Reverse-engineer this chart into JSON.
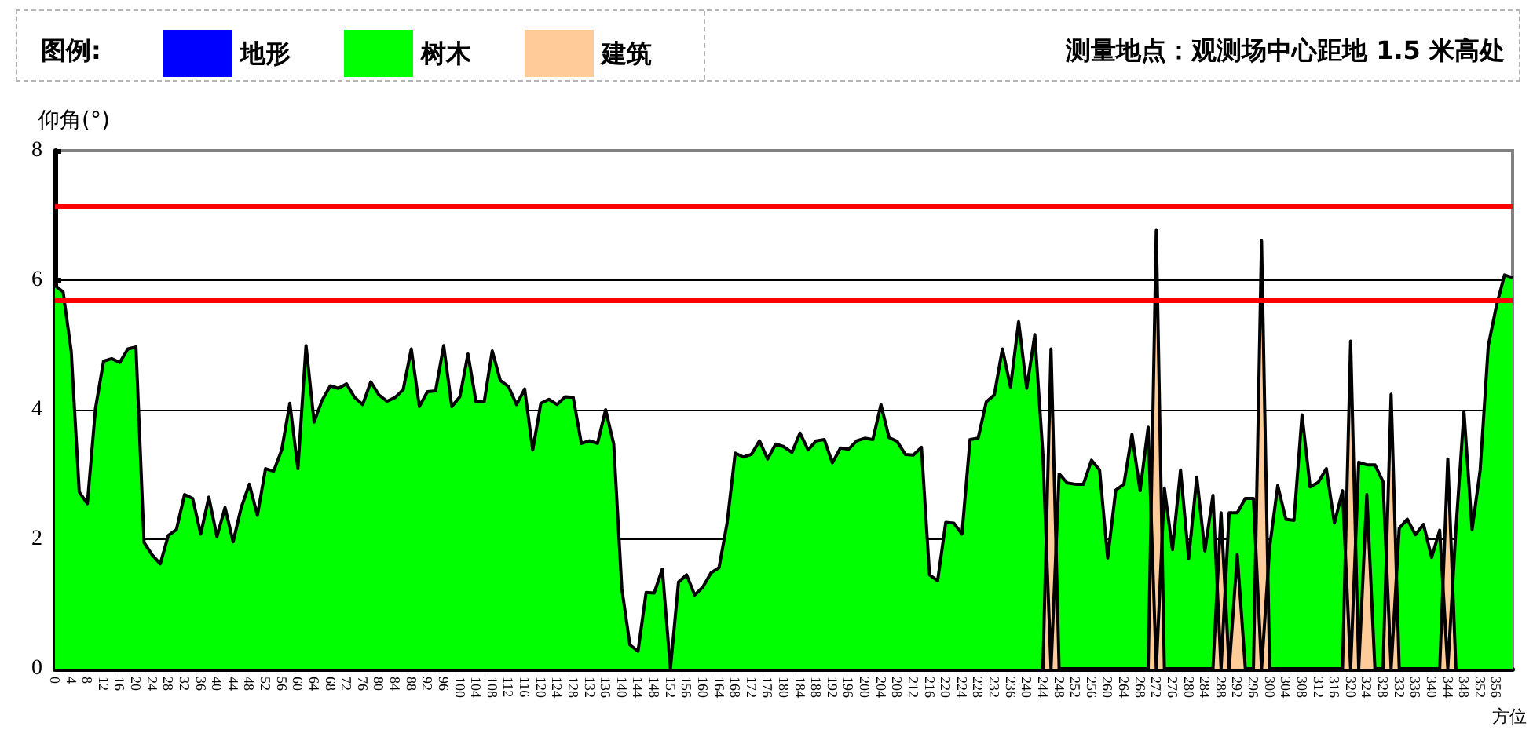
{
  "chart_data": {
    "type": "area",
    "title": "测量地点：观测场中心距地 1.5 米高处",
    "legend_title": "图例:",
    "xlabel": "方位",
    "ylabel": "仰角(°)",
    "x": [
      0,
      2,
      4,
      6,
      8,
      10,
      12,
      14,
      16,
      18,
      20,
      22,
      24,
      26,
      28,
      30,
      32,
      34,
      36,
      38,
      40,
      42,
      44,
      46,
      48,
      50,
      52,
      54,
      56,
      58,
      60,
      62,
      64,
      66,
      68,
      70,
      72,
      74,
      76,
      78,
      80,
      82,
      84,
      86,
      88,
      90,
      92,
      94,
      96,
      98,
      100,
      102,
      104,
      106,
      108,
      110,
      112,
      114,
      116,
      118,
      120,
      122,
      124,
      126,
      128,
      130,
      132,
      134,
      136,
      138,
      140,
      142,
      144,
      146,
      148,
      150,
      152,
      154,
      156,
      158,
      160,
      162,
      164,
      166,
      168,
      170,
      172,
      174,
      176,
      178,
      180,
      182,
      184,
      186,
      188,
      190,
      192,
      194,
      196,
      198,
      200,
      202,
      204,
      206,
      208,
      210,
      212,
      214,
      216,
      218,
      220,
      222,
      224,
      226,
      228,
      230,
      232,
      234,
      236,
      238,
      240,
      242,
      244,
      246,
      248,
      250,
      252,
      254,
      256,
      258,
      260,
      262,
      264,
      266,
      268,
      270,
      272,
      274,
      276,
      278,
      280,
      282,
      284,
      286,
      288,
      290,
      292,
      294,
      296,
      298,
      300,
      302,
      304,
      306,
      308,
      310,
      312,
      314,
      316,
      318,
      320,
      322,
      324,
      326,
      328,
      330,
      332,
      334,
      336,
      338,
      340,
      342,
      344,
      346,
      348,
      350,
      352,
      354,
      356,
      358,
      360
    ],
    "xlim": [
      0,
      360
    ],
    "xticks": [
      0,
      4,
      8,
      12,
      16,
      20,
      24,
      28,
      32,
      36,
      40,
      44,
      48,
      52,
      56,
      60,
      64,
      68,
      72,
      76,
      80,
      84,
      88,
      92,
      96,
      100,
      104,
      108,
      112,
      116,
      120,
      124,
      128,
      132,
      136,
      140,
      144,
      148,
      152,
      156,
      160,
      164,
      168,
      172,
      176,
      180,
      184,
      188,
      192,
      196,
      200,
      204,
      208,
      212,
      216,
      220,
      224,
      228,
      232,
      236,
      240,
      244,
      248,
      252,
      256,
      260,
      264,
      268,
      272,
      276,
      280,
      284,
      288,
      292,
      296,
      300,
      304,
      308,
      312,
      316,
      320,
      324,
      328,
      332,
      336,
      340,
      344,
      348,
      352,
      356
    ],
    "ylim": [
      0,
      8
    ],
    "yticks": [
      0,
      2,
      4,
      6,
      8
    ],
    "grid": "y",
    "legend": "top left",
    "marker": "none",
    "ref_lines": [
      {
        "axis": "y",
        "value": 7.15,
        "color": "#ff0000"
      },
      {
        "axis": "y",
        "value": 5.7,
        "color": "#ff0000"
      }
    ],
    "series": [
      {
        "name": "地形",
        "color": "#0000ff",
        "values": [
          null,
          null,
          null,
          null,
          null,
          null,
          null,
          null,
          null,
          null,
          null,
          null,
          null,
          null,
          null,
          null,
          null,
          null,
          null,
          null,
          null,
          null,
          null,
          null,
          null,
          null,
          null,
          null,
          null,
          null,
          null,
          null,
          null,
          null,
          null,
          null,
          null,
          null,
          null,
          null,
          null,
          null,
          null,
          null,
          null,
          null,
          null,
          null,
          null,
          null,
          null,
          null,
          null,
          null,
          null,
          null,
          null,
          null,
          null,
          null,
          null,
          null,
          null,
          null,
          null,
          null,
          null,
          null,
          null,
          null,
          null,
          null,
          null,
          null,
          null,
          null,
          null,
          null,
          null,
          null,
          null,
          null,
          null,
          null,
          null,
          null,
          null,
          null,
          null,
          null,
          null,
          null,
          null,
          null,
          null,
          null,
          null,
          null,
          null,
          null,
          null,
          null,
          null,
          null,
          null,
          null,
          null,
          null,
          null,
          null,
          null,
          null,
          null,
          null,
          null,
          null,
          null,
          null,
          null,
          null,
          null,
          null,
          null,
          null,
          null,
          null,
          null,
          null,
          null,
          null,
          null,
          null,
          null,
          null,
          null,
          null,
          null,
          null,
          null,
          null,
          null,
          null,
          null,
          null,
          null,
          null,
          null,
          null,
          null,
          null,
          null,
          null,
          null,
          null,
          null,
          null,
          null,
          null,
          null,
          null,
          null,
          null,
          null,
          null,
          null,
          null,
          null,
          null,
          null,
          null,
          null,
          null,
          null,
          null,
          null,
          null,
          null,
          null,
          null,
          null,
          null
        ]
      },
      {
        "name": "树木",
        "color": "#00ff00",
        "values": [
          5.92,
          5.82,
          4.91,
          2.73,
          2.55,
          4.02,
          4.75,
          4.79,
          4.73,
          4.94,
          4.97,
          1.95,
          1.76,
          1.62,
          2.06,
          2.15,
          2.69,
          2.63,
          2.08,
          2.65,
          2.04,
          2.49,
          1.96,
          2.49,
          2.85,
          2.37,
          3.09,
          3.05,
          3.38,
          4.1,
          3.09,
          4.99,
          3.81,
          4.15,
          4.37,
          4.33,
          4.4,
          4.19,
          4.08,
          4.43,
          4.23,
          4.13,
          4.19,
          4.31,
          4.94,
          4.05,
          4.28,
          4.29,
          4.99,
          4.05,
          4.2,
          4.86,
          4.12,
          4.12,
          4.91,
          4.45,
          4.36,
          4.08,
          4.32,
          3.38,
          4.1,
          4.16,
          4.08,
          4.2,
          4.19,
          3.48,
          3.52,
          3.48,
          4.0,
          3.47,
          1.24,
          0.37,
          0.27,
          1.18,
          1.17,
          1.54,
          0,
          1.34,
          1.45,
          1.14,
          1.26,
          1.48,
          1.56,
          2.25,
          3.33,
          3.27,
          3.31,
          3.52,
          3.24,
          3.47,
          3.43,
          3.34,
          3.64,
          3.38,
          3.52,
          3.54,
          3.18,
          3.41,
          3.39,
          3.52,
          3.56,
          3.54,
          4.08,
          3.57,
          3.51,
          3.31,
          3.3,
          3.42,
          1.45,
          1.36,
          2.26,
          2.25,
          2.08,
          3.54,
          3.56,
          4.12,
          4.23,
          4.94,
          4.35,
          5.36,
          4.33,
          5.16,
          3.31,
          0,
          3.01,
          2.87,
          2.85,
          2.85,
          3.22,
          3.07,
          1.71,
          2.76,
          2.85,
          3.62,
          2.75,
          3.73,
          0,
          2.79,
          1.84,
          3.07,
          1.7,
          2.96,
          1.82,
          2.68,
          0,
          2.41,
          2.41,
          2.63,
          2.63,
          0,
          1.88,
          2.83,
          2.31,
          2.29,
          3.92,
          2.81,
          2.88,
          3.09,
          2.25,
          2.75,
          0,
          3.19,
          3.15,
          3.15,
          2.89,
          0,
          2.17,
          2.31,
          2.07,
          2.23,
          1.72,
          2.14,
          0,
          2.15,
          3.97,
          2.15,
          3.07,
          4.99,
          5.6,
          6.08,
          6.04
        ]
      },
      {
        "name": "建筑",
        "color": "#ffcc99",
        "x": [
          244,
          246,
          248,
          270,
          272,
          274,
          286,
          288,
          290,
          292,
          294,
          296,
          298,
          300,
          318,
          320,
          322,
          324,
          326,
          328,
          330,
          332,
          342,
          344,
          346
        ],
        "values": [
          0,
          4.94,
          0,
          0,
          6.77,
          0,
          0,
          2.41,
          0,
          1.76,
          0,
          0,
          6.61,
          0,
          0,
          5.06,
          0,
          2.69,
          0,
          0,
          4.24,
          0,
          0,
          3.24,
          0
        ]
      }
    ]
  }
}
